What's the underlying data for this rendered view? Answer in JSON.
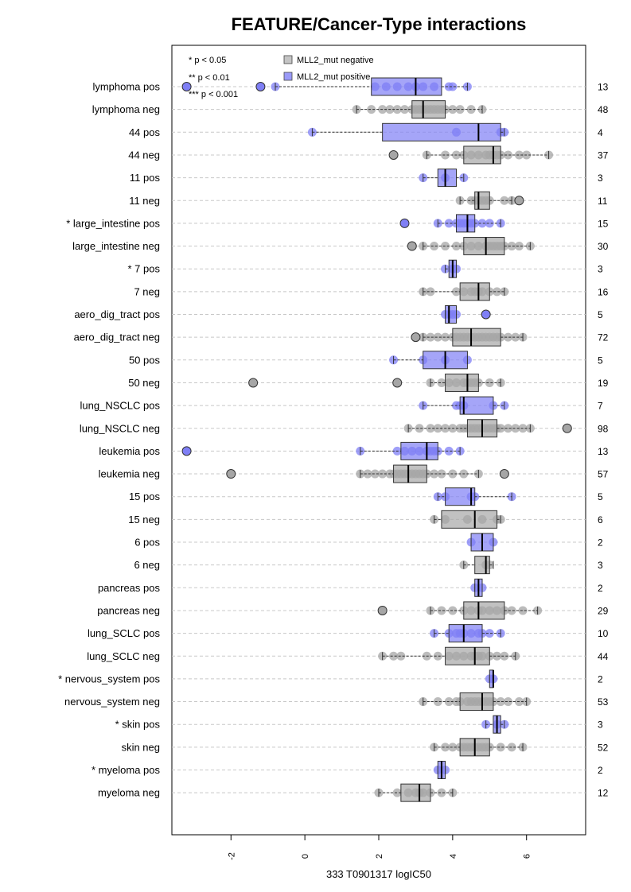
{
  "chart_data": {
    "type": "boxplot",
    "title": "FEATURE/Cancer-Type interactions",
    "xlabel": "333 T0901317 logIC50",
    "xlim": [
      -3.6,
      7.6
    ],
    "xticks": [
      "-2",
      "0",
      "2",
      "4",
      "6"
    ],
    "xtick_values": [
      -2,
      0,
      2,
      4,
      6
    ],
    "significance_legend": [
      "* p < 0.05",
      "** p < 0.01",
      "*** p < 0.001"
    ],
    "series": [
      {
        "name": "MLL2_mut negative",
        "color": "#a6a6a6"
      },
      {
        "name": "MLL2_mut positive",
        "color": "#7f7ff5"
      }
    ],
    "rows": [
      {
        "label": "lymphoma pos",
        "group": "pos",
        "count": "13",
        "box": [
          1.8,
          3.0,
          3.7
        ],
        "whisker": [
          -0.8,
          4.4
        ],
        "outliers": [
          -3.2,
          -1.2
        ],
        "points": [
          -0.8,
          1.9,
          2.2,
          2.5,
          2.8,
          3.0,
          3.2,
          3.5,
          3.9,
          4.0,
          4.4
        ]
      },
      {
        "label": "lymphoma neg",
        "group": "neg",
        "count": "48",
        "box": [
          2.9,
          3.2,
          3.8
        ],
        "whisker": [
          1.4,
          4.8
        ],
        "outliers": [],
        "points": [
          1.4,
          1.8,
          2.1,
          2.3,
          2.5,
          2.7,
          2.9,
          3.0,
          3.1,
          3.2,
          3.3,
          3.4,
          3.5,
          3.6,
          3.7,
          3.8,
          4.0,
          4.2,
          4.5,
          4.8
        ]
      },
      {
        "label": "44 pos",
        "group": "pos",
        "count": "4",
        "box": [
          2.1,
          4.7,
          5.3
        ],
        "whisker": [
          0.2,
          5.4
        ],
        "outliers": [],
        "points": [
          0.2,
          4.1,
          5.3,
          5.4
        ]
      },
      {
        "label": "44 neg",
        "group": "neg",
        "count": "37",
        "box": [
          4.3,
          5.1,
          5.3
        ],
        "whisker": [
          3.3,
          6.6
        ],
        "outliers": [
          2.4
        ],
        "points": [
          3.3,
          3.8,
          4.1,
          4.3,
          4.5,
          4.7,
          4.9,
          5.0,
          5.1,
          5.2,
          5.3,
          5.5,
          5.8,
          6.0,
          6.6
        ]
      },
      {
        "label": "11 pos",
        "group": "pos",
        "count": "3",
        "box": [
          3.6,
          3.8,
          4.1
        ],
        "whisker": [
          3.2,
          4.3
        ],
        "outliers": [],
        "points": [
          3.2,
          3.8,
          4.3
        ]
      },
      {
        "label": "11 neg",
        "group": "neg",
        "count": "11",
        "box": [
          4.6,
          4.7,
          5.0
        ],
        "whisker": [
          4.2,
          5.6
        ],
        "outliers": [
          5.8
        ],
        "points": [
          4.2,
          4.5,
          4.6,
          4.7,
          4.8,
          4.9,
          5.0,
          5.4,
          5.6
        ]
      },
      {
        "label": "* large_intestine pos",
        "group": "pos",
        "count": "15",
        "box": [
          4.1,
          4.4,
          4.6
        ],
        "whisker": [
          3.6,
          5.3
        ],
        "outliers": [
          2.7
        ],
        "points": [
          3.6,
          3.9,
          4.1,
          4.2,
          4.3,
          4.4,
          4.5,
          4.6,
          4.8,
          5.0,
          5.3
        ]
      },
      {
        "label": "large_intestine neg",
        "group": "neg",
        "count": "30",
        "box": [
          4.3,
          4.9,
          5.4
        ],
        "whisker": [
          3.2,
          6.1
        ],
        "outliers": [
          2.9
        ],
        "points": [
          3.2,
          3.5,
          3.8,
          4.1,
          4.3,
          4.5,
          4.7,
          4.9,
          5.0,
          5.1,
          5.2,
          5.3,
          5.4,
          5.6,
          5.8,
          6.1
        ]
      },
      {
        "label": "* 7 pos",
        "group": "pos",
        "count": "3",
        "box": [
          3.9,
          4.0,
          4.1
        ],
        "whisker": [
          3.8,
          4.1
        ],
        "outliers": [],
        "points": [
          3.8,
          4.0,
          4.1
        ]
      },
      {
        "label": "7 neg",
        "group": "neg",
        "count": "16",
        "box": [
          4.2,
          4.7,
          5.0
        ],
        "whisker": [
          3.2,
          5.4
        ],
        "outliers": [],
        "points": [
          3.2,
          3.4,
          4.1,
          4.3,
          4.5,
          4.6,
          4.7,
          4.8,
          5.0,
          5.2,
          5.4
        ]
      },
      {
        "label": "aero_dig_tract pos",
        "group": "pos",
        "count": "5",
        "box": [
          3.8,
          3.9,
          4.1
        ],
        "whisker": [
          3.8,
          4.1
        ],
        "outliers": [
          4.9
        ],
        "points": [
          3.8,
          3.9,
          4.0,
          4.1
        ]
      },
      {
        "label": "aero_dig_tract neg",
        "group": "neg",
        "count": "72",
        "box": [
          4.0,
          4.5,
          5.3
        ],
        "whisker": [
          3.2,
          5.9
        ],
        "outliers": [
          3.0
        ],
        "points": [
          3.2,
          3.4,
          3.6,
          3.8,
          4.0,
          4.1,
          4.2,
          4.3,
          4.4,
          4.5,
          4.6,
          4.7,
          4.8,
          4.9,
          5.0,
          5.1,
          5.2,
          5.3,
          5.5,
          5.7,
          5.9
        ]
      },
      {
        "label": "50 pos",
        "group": "pos",
        "count": "5",
        "box": [
          3.2,
          3.8,
          4.4
        ],
        "whisker": [
          2.4,
          4.4
        ],
        "outliers": [],
        "points": [
          2.4,
          3.2,
          3.8,
          4.4
        ]
      },
      {
        "label": "50 neg",
        "group": "neg",
        "count": "19",
        "box": [
          3.8,
          4.4,
          4.7
        ],
        "whisker": [
          3.4,
          5.3
        ],
        "outliers": [
          -1.4,
          2.5
        ],
        "points": [
          3.4,
          3.7,
          3.9,
          4.1,
          4.3,
          4.4,
          4.5,
          4.6,
          4.7,
          5.0,
          5.3
        ]
      },
      {
        "label": "lung_NSCLC pos",
        "group": "pos",
        "count": "7",
        "box": [
          4.2,
          4.3,
          5.1
        ],
        "whisker": [
          3.2,
          5.4
        ],
        "outliers": [],
        "points": [
          3.2,
          4.1,
          4.2,
          4.3,
          5.1,
          5.4
        ]
      },
      {
        "label": "lung_NSCLC neg",
        "group": "neg",
        "count": "98",
        "box": [
          4.4,
          4.8,
          5.2
        ],
        "whisker": [
          2.8,
          6.1
        ],
        "outliers": [
          7.1
        ],
        "points": [
          2.8,
          3.1,
          3.4,
          3.6,
          3.8,
          4.0,
          4.2,
          4.3,
          4.4,
          4.5,
          4.6,
          4.7,
          4.8,
          4.9,
          5.0,
          5.1,
          5.2,
          5.3,
          5.5,
          5.7,
          5.9,
          6.1
        ]
      },
      {
        "label": "leukemia pos",
        "group": "pos",
        "count": "13",
        "box": [
          2.6,
          3.3,
          3.6
        ],
        "whisker": [
          1.5,
          4.2
        ],
        "outliers": [
          -3.2
        ],
        "points": [
          1.5,
          2.5,
          2.7,
          2.9,
          3.1,
          3.3,
          3.4,
          3.5,
          3.6,
          3.9,
          4.2
        ]
      },
      {
        "label": "leukemia neg",
        "group": "neg",
        "count": "57",
        "box": [
          2.4,
          2.8,
          3.3
        ],
        "whisker": [
          1.5,
          4.7
        ],
        "outliers": [
          -2.0,
          5.4
        ],
        "points": [
          1.5,
          1.7,
          1.9,
          2.1,
          2.3,
          2.4,
          2.5,
          2.6,
          2.7,
          2.8,
          2.9,
          3.0,
          3.1,
          3.2,
          3.3,
          3.5,
          3.7,
          4.0,
          4.3,
          4.7
        ]
      },
      {
        "label": "15 pos",
        "group": "pos",
        "count": "5",
        "box": [
          3.8,
          4.5,
          4.6
        ],
        "whisker": [
          3.6,
          5.6
        ],
        "outliers": [],
        "points": [
          3.6,
          3.8,
          4.5,
          4.6,
          5.6
        ]
      },
      {
        "label": "15 neg",
        "group": "neg",
        "count": "6",
        "box": [
          3.7,
          4.6,
          5.2
        ],
        "whisker": [
          3.5,
          5.3
        ],
        "outliers": [],
        "points": [
          3.5,
          3.8,
          4.4,
          4.8,
          5.2,
          5.3
        ]
      },
      {
        "label": "6 pos",
        "group": "pos",
        "count": "2",
        "box": [
          4.5,
          4.8,
          5.1
        ],
        "whisker": [
          4.5,
          5.1
        ],
        "outliers": [],
        "points": [
          4.5,
          5.1
        ]
      },
      {
        "label": "6 neg",
        "group": "neg",
        "count": "3",
        "box": [
          4.6,
          4.9,
          5.0
        ],
        "whisker": [
          4.3,
          5.1
        ],
        "outliers": [],
        "points": [
          4.3,
          4.9,
          5.0
        ]
      },
      {
        "label": "pancreas pos",
        "group": "pos",
        "count": "2",
        "box": [
          4.6,
          4.7,
          4.8
        ],
        "whisker": [
          4.6,
          4.8
        ],
        "outliers": [],
        "points": [
          4.6,
          4.8
        ]
      },
      {
        "label": "pancreas neg",
        "group": "neg",
        "count": "29",
        "box": [
          4.3,
          4.7,
          5.4
        ],
        "whisker": [
          3.4,
          6.3
        ],
        "outliers": [
          2.1
        ],
        "points": [
          3.4,
          3.7,
          4.0,
          4.3,
          4.5,
          4.7,
          4.8,
          5.0,
          5.2,
          5.4,
          5.6,
          5.9,
          6.3
        ]
      },
      {
        "label": "lung_SCLC pos",
        "group": "pos",
        "count": "10",
        "box": [
          3.9,
          4.3,
          4.8
        ],
        "whisker": [
          3.5,
          5.3
        ],
        "outliers": [],
        "points": [
          3.5,
          3.9,
          4.1,
          4.2,
          4.3,
          4.5,
          4.7,
          4.8,
          5.0,
          5.3
        ]
      },
      {
        "label": "lung_SCLC neg",
        "group": "neg",
        "count": "44",
        "box": [
          3.8,
          4.6,
          5.0
        ],
        "whisker": [
          2.1,
          5.7
        ],
        "outliers": [],
        "points": [
          2.1,
          2.4,
          2.6,
          3.3,
          3.6,
          3.9,
          4.1,
          4.3,
          4.5,
          4.6,
          4.7,
          4.8,
          5.0,
          5.2,
          5.4,
          5.7
        ]
      },
      {
        "label": "* nervous_system pos",
        "group": "pos",
        "count": "2",
        "box": [
          5.0,
          5.1,
          5.1
        ],
        "whisker": [
          5.0,
          5.1
        ],
        "outliers": [],
        "points": [
          5.0,
          5.1
        ]
      },
      {
        "label": "nervous_system neg",
        "group": "neg",
        "count": "53",
        "box": [
          4.2,
          4.8,
          5.1
        ],
        "whisker": [
          3.2,
          6.0
        ],
        "outliers": [],
        "points": [
          3.2,
          3.6,
          3.9,
          4.1,
          4.2,
          4.4,
          4.5,
          4.6,
          4.7,
          4.8,
          4.9,
          5.0,
          5.1,
          5.3,
          5.5,
          5.8,
          6.0
        ]
      },
      {
        "label": "* skin pos",
        "group": "pos",
        "count": "3",
        "box": [
          5.1,
          5.2,
          5.3
        ],
        "whisker": [
          4.9,
          5.4
        ],
        "outliers": [],
        "points": [
          4.9,
          5.2,
          5.4
        ]
      },
      {
        "label": "skin neg",
        "group": "neg",
        "count": "52",
        "box": [
          4.2,
          4.6,
          5.0
        ],
        "whisker": [
          3.5,
          5.9
        ],
        "outliers": [],
        "points": [
          3.5,
          3.8,
          4.0,
          4.2,
          4.3,
          4.4,
          4.5,
          4.6,
          4.7,
          4.8,
          4.9,
          5.0,
          5.3,
          5.6,
          5.9
        ]
      },
      {
        "label": "* myeloma pos",
        "group": "pos",
        "count": "2",
        "box": [
          3.6,
          3.7,
          3.8
        ],
        "whisker": [
          3.6,
          3.8
        ],
        "outliers": [],
        "points": [
          3.6,
          3.8
        ]
      },
      {
        "label": "myeloma neg",
        "group": "neg",
        "count": "12",
        "box": [
          2.6,
          3.1,
          3.4
        ],
        "whisker": [
          2.0,
          4.0
        ],
        "outliers": [],
        "points": [
          2.0,
          2.5,
          2.8,
          3.0,
          3.1,
          3.2,
          3.4,
          3.7,
          4.0
        ]
      }
    ]
  }
}
